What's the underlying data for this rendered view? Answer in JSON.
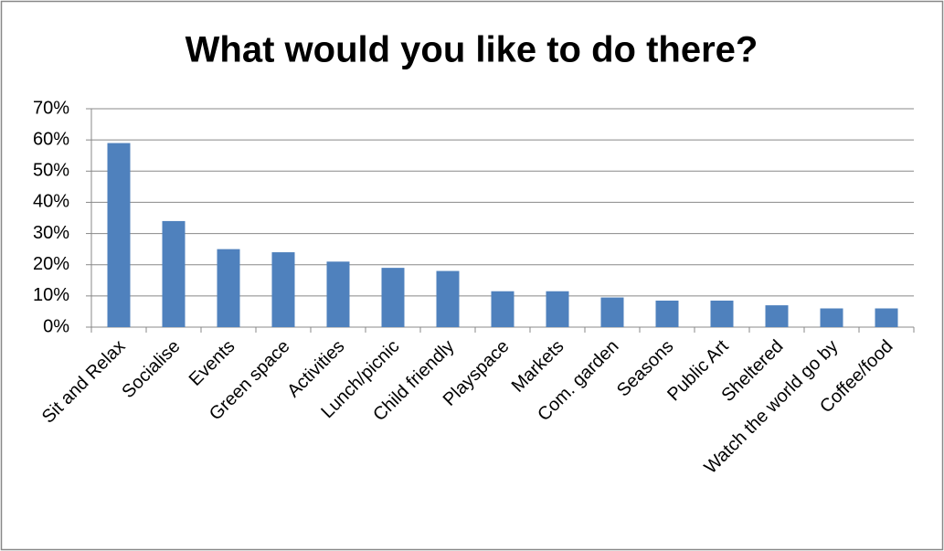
{
  "chart_data": {
    "type": "bar",
    "title": "What would you like to do there?",
    "categories": [
      "Sit and Relax",
      "Socialise",
      "Events",
      "Green space",
      "Activities",
      "Lunch/picnic",
      "Child friendly",
      "Playspace",
      "Markets",
      "Com. garden",
      "Seasons",
      "Public Art",
      "Sheltered",
      "Watch the world go by",
      "Coffee/food"
    ],
    "values": [
      59,
      34,
      25,
      24,
      21,
      19,
      18,
      11.5,
      11.5,
      9.5,
      8.5,
      8.5,
      7,
      6,
      6
    ],
    "color": "#4f81bd",
    "ylim": [
      0,
      70
    ],
    "yticks": [
      {
        "value": 0,
        "label": "0%"
      },
      {
        "value": 10,
        "label": "10%"
      },
      {
        "value": 20,
        "label": "20%"
      },
      {
        "value": 30,
        "label": "30%"
      },
      {
        "value": 40,
        "label": "40%"
      },
      {
        "value": 50,
        "label": "50%"
      },
      {
        "value": 60,
        "label": "60%"
      },
      {
        "value": 70,
        "label": "70%"
      }
    ],
    "grid": true
  }
}
